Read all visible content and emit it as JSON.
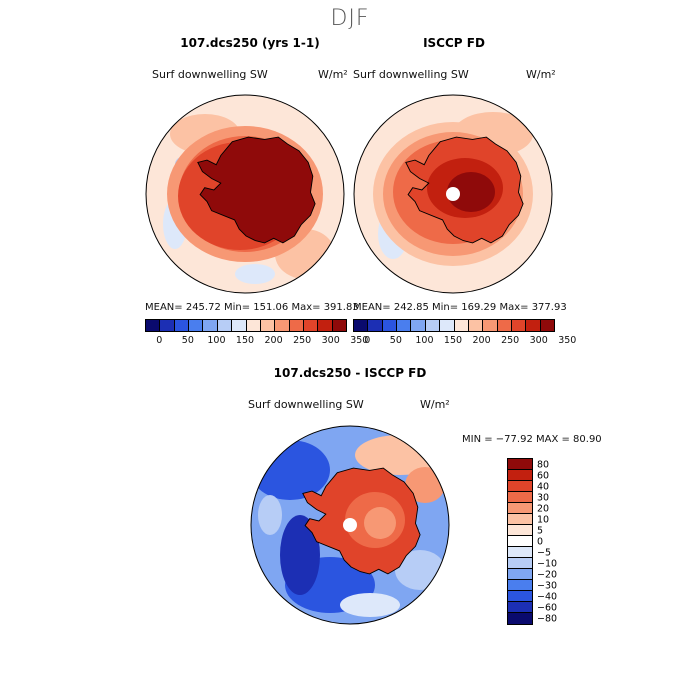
{
  "season": "DJF",
  "panel_left": {
    "title": "107.dcs250 (yrs 1-1)",
    "variable": "Surf downwelling SW",
    "units": "W/m²",
    "stats": "MEAN= 245.72   Min= 151.06   Max= 391.83"
  },
  "panel_right": {
    "title": "ISCCP FD",
    "variable": "Surf downwelling SW",
    "units": "W/m²",
    "stats": "MEAN= 242.85   Min= 169.29   Max= 377.93"
  },
  "panel_diff": {
    "title": "107.dcs250 - ISCCP FD",
    "variable": "Surf downwelling SW",
    "units": "W/m²",
    "stats": "MIN = −77.92  MAX =  80.90"
  },
  "colorbar_top": {
    "labels": [
      "0",
      "50",
      "100",
      "150",
      "200",
      "250",
      "300",
      "350"
    ],
    "colors": [
      "#0a0a6e",
      "#1c2fb4",
      "#2b55e0",
      "#4a7eee",
      "#7fa6f2",
      "#b7cdf6",
      "#dde8fa",
      "#fde6d8",
      "#fcc2a4",
      "#f79874",
      "#ee6a48",
      "#e0442a",
      "#c2200f",
      "#8f0a0a"
    ]
  },
  "colorbar_diff": {
    "labels": [
      "80",
      "60",
      "40",
      "30",
      "20",
      "10",
      "5",
      "0",
      "−5",
      "−10",
      "−20",
      "−30",
      "−40",
      "−60",
      "−80"
    ],
    "colors": [
      "#8f0a0a",
      "#c2200f",
      "#e0442a",
      "#ee6a48",
      "#f79874",
      "#fcc2a4",
      "#fde6d8",
      "#ffffff",
      "#dde8fa",
      "#b7cdf6",
      "#7fa6f2",
      "#4a7eee",
      "#2b55e0",
      "#1c2fb4",
      "#0a0a6e"
    ]
  }
}
